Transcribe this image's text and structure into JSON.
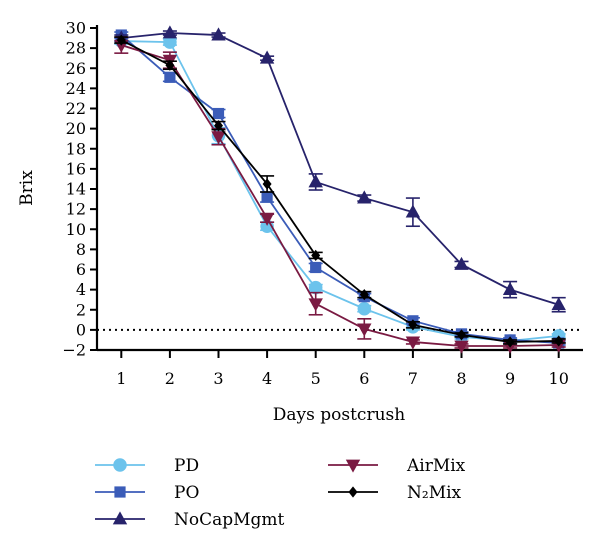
{
  "chart_data": {
    "type": "line",
    "title": "",
    "xlabel": "Days postcrush",
    "ylabel": "Brix",
    "xlim": [
      0.5,
      10.5
    ],
    "ylim": [
      -2,
      30
    ],
    "x_ticks": [
      1,
      2,
      3,
      4,
      5,
      6,
      7,
      8,
      9,
      10
    ],
    "y_ticks": [
      -2,
      0,
      2,
      4,
      6,
      8,
      10,
      12,
      14,
      16,
      18,
      20,
      22,
      24,
      26,
      28,
      30
    ],
    "reference_line": {
      "y": 0,
      "style": "dotted"
    },
    "legend_position": "bottom",
    "x": [
      1,
      2,
      3,
      4,
      5,
      6,
      7,
      8,
      9,
      10
    ],
    "series": [
      {
        "name": "PD",
        "marker": "circle",
        "color": "#6cc3ec",
        "values": [
          28.7,
          28.6,
          19.3,
          10.3,
          4.2,
          2.1,
          0.3,
          -0.7,
          -1.1,
          -0.6
        ],
        "error": [
          0.3,
          0.3,
          0.8,
          0.4,
          0.3,
          0.3,
          0.3,
          0.2,
          0.2,
          0.2
        ]
      },
      {
        "name": "PO",
        "marker": "square",
        "color": "#3b5cb8",
        "values": [
          29.3,
          25.1,
          21.5,
          13.2,
          6.2,
          3.3,
          0.9,
          -0.4,
          -1.0,
          -1.3
        ],
        "error": [
          0.3,
          0.4,
          0.4,
          0.5,
          0.4,
          0.3,
          0.3,
          0.2,
          0.2,
          0.2
        ]
      },
      {
        "name": "NoCapMgmt",
        "marker": "triangle-up",
        "color": "#27236b",
        "values": [
          29.0,
          29.5,
          29.3,
          27.0,
          14.7,
          13.1,
          11.7,
          6.5,
          4.0,
          2.5
        ],
        "error": [
          0.3,
          0.2,
          0.2,
          0.2,
          0.8,
          0.3,
          1.4,
          0.3,
          0.8,
          0.7
        ]
      },
      {
        "name": "AirMix",
        "marker": "triangle-down",
        "color": "#7a1a42",
        "values": [
          28.3,
          26.8,
          19.2,
          11.1,
          2.6,
          0.1,
          -1.2,
          -1.6,
          -1.6,
          -1.5
        ],
        "error": [
          0.8,
          0.8,
          0.8,
          0.4,
          1.1,
          1.0,
          0.2,
          0.2,
          0.2,
          0.2
        ]
      },
      {
        "name": "N₂Mix",
        "marker": "diamond",
        "color": "#000000",
        "values": [
          28.8,
          26.3,
          20.3,
          14.5,
          7.4,
          3.5,
          0.5,
          -0.5,
          -1.2,
          -1.1
        ],
        "error": [
          0.3,
          0.4,
          0.4,
          0.8,
          0.3,
          0.3,
          0.3,
          0.2,
          0.2,
          0.2
        ]
      }
    ]
  }
}
